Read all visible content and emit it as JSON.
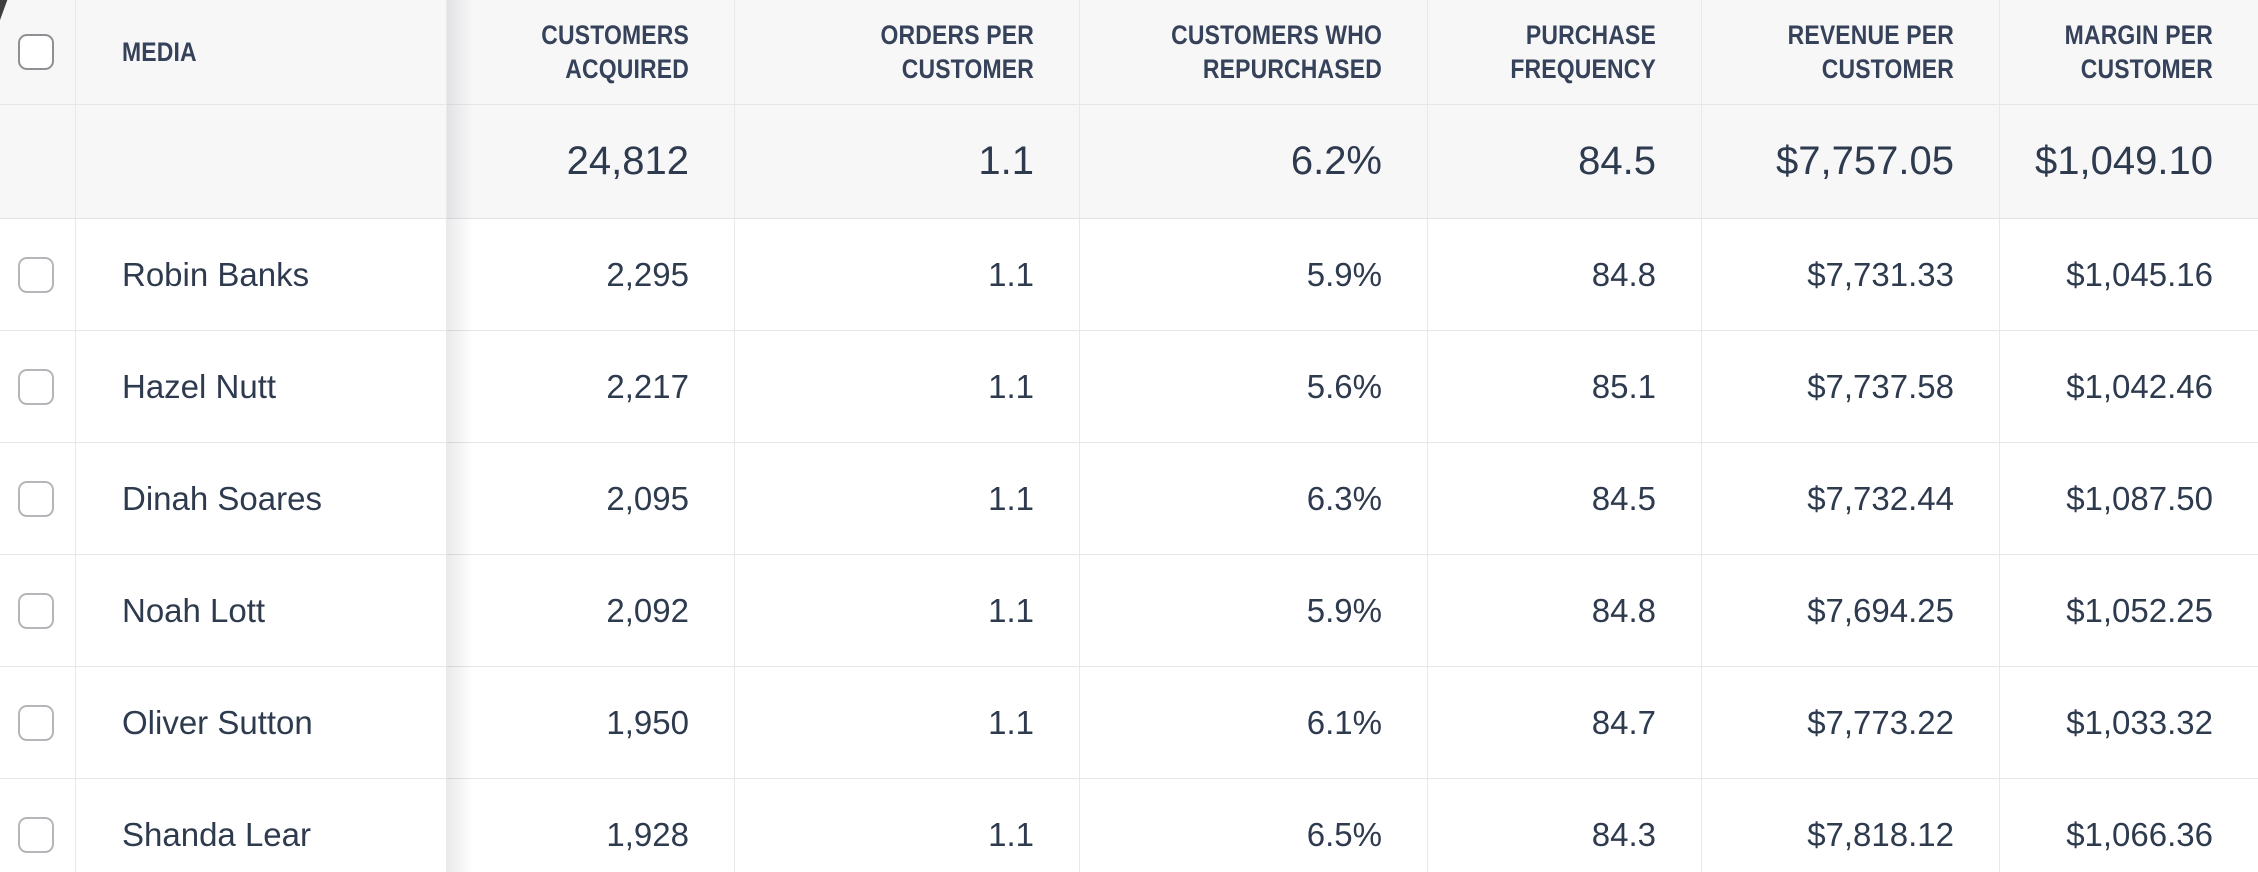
{
  "colors": {
    "header_bg": "#f7f7f8",
    "row_bg": "#ffffff",
    "body_text": "#2e3a4e",
    "header_text": "#36425a",
    "border": "#e6e6e9",
    "frozen_shadow": "rgba(55,60,70,0.11)",
    "checkbox_border": "#b5b5ba"
  },
  "table": {
    "columns": [
      {
        "id": "media",
        "label": "MEDIA",
        "align": "left"
      },
      {
        "id": "customers_acquired",
        "label": "CUSTOMERS ACQUIRED",
        "align": "right"
      },
      {
        "id": "orders_per_customer",
        "label": "ORDERS PER CUSTOMER",
        "align": "right"
      },
      {
        "id": "customers_who_repurchased",
        "label": "CUSTOMERS WHO REPURCHASED",
        "align": "right"
      },
      {
        "id": "purchase_frequency",
        "label": "PURCHASE FREQUENCY",
        "align": "right"
      },
      {
        "id": "revenue_per_customer",
        "label": "REVENUE PER CUSTOMER",
        "align": "right"
      },
      {
        "id": "margin_per_customer",
        "label": "MARGIN PER CUSTOMER",
        "align": "right"
      }
    ],
    "totals": {
      "customers_acquired": "24,812",
      "orders_per_customer": "1.1",
      "customers_who_repurchased": "6.2%",
      "purchase_frequency": "84.5",
      "revenue_per_customer": "$7,757.05",
      "margin_per_customer": "$1,049.10"
    },
    "rows": [
      {
        "media": "Robin Banks",
        "customers_acquired": "2,295",
        "orders_per_customer": "1.1",
        "customers_who_repurchased": "5.9%",
        "purchase_frequency": "84.8",
        "revenue_per_customer": "$7,731.33",
        "margin_per_customer": "$1,045.16"
      },
      {
        "media": "Hazel Nutt",
        "customers_acquired": "2,217",
        "orders_per_customer": "1.1",
        "customers_who_repurchased": "5.6%",
        "purchase_frequency": "85.1",
        "revenue_per_customer": "$7,737.58",
        "margin_per_customer": "$1,042.46"
      },
      {
        "media": "Dinah Soares",
        "customers_acquired": "2,095",
        "orders_per_customer": "1.1",
        "customers_who_repurchased": "6.3%",
        "purchase_frequency": "84.5",
        "revenue_per_customer": "$7,732.44",
        "margin_per_customer": "$1,087.50"
      },
      {
        "media": "Noah Lott",
        "customers_acquired": "2,092",
        "orders_per_customer": "1.1",
        "customers_who_repurchased": "5.9%",
        "purchase_frequency": "84.8",
        "revenue_per_customer": "$7,694.25",
        "margin_per_customer": "$1,052.25"
      },
      {
        "media": "Oliver Sutton",
        "customers_acquired": "1,950",
        "orders_per_customer": "1.1",
        "customers_who_repurchased": "6.1%",
        "purchase_frequency": "84.7",
        "revenue_per_customer": "$7,773.22",
        "margin_per_customer": "$1,033.32"
      },
      {
        "media": "Shanda Lear",
        "customers_acquired": "1,928",
        "orders_per_customer": "1.1",
        "customers_who_repurchased": "6.5%",
        "purchase_frequency": "84.3",
        "revenue_per_customer": "$7,818.12",
        "margin_per_customer": "$1,066.36"
      }
    ]
  }
}
